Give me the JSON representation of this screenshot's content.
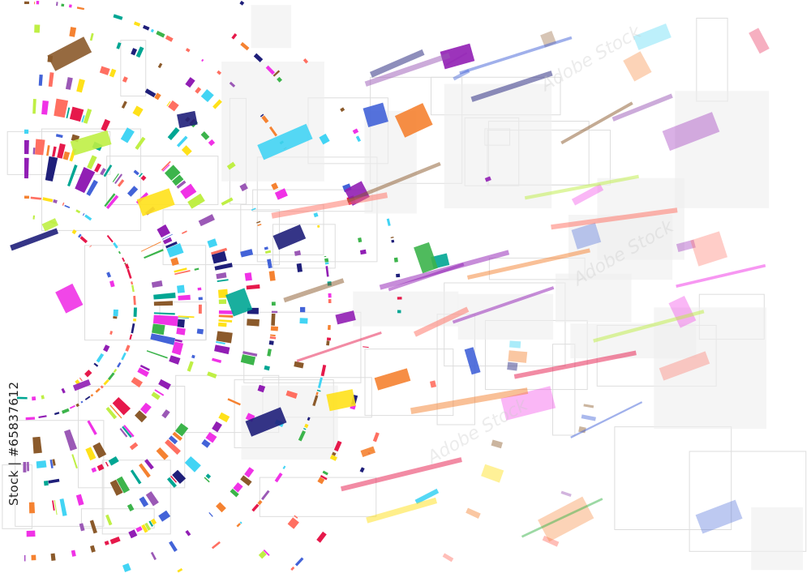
{
  "artwork": {
    "subject": "abstract colorful concentric tech circle",
    "palette": [
      "#e6194b",
      "#f58231",
      "#ffe119",
      "#bfef45",
      "#3cb44b",
      "#42d4f4",
      "#4363d8",
      "#911eb4",
      "#f032e6",
      "#00a693",
      "#8b5a2b",
      "#1f1f7a",
      "#ff6f61",
      "#9b59b6"
    ],
    "background": "#ffffff"
  },
  "credit": {
    "text": "Stock | #65837612"
  },
  "watermark": {
    "text": "Adobe Stock"
  }
}
